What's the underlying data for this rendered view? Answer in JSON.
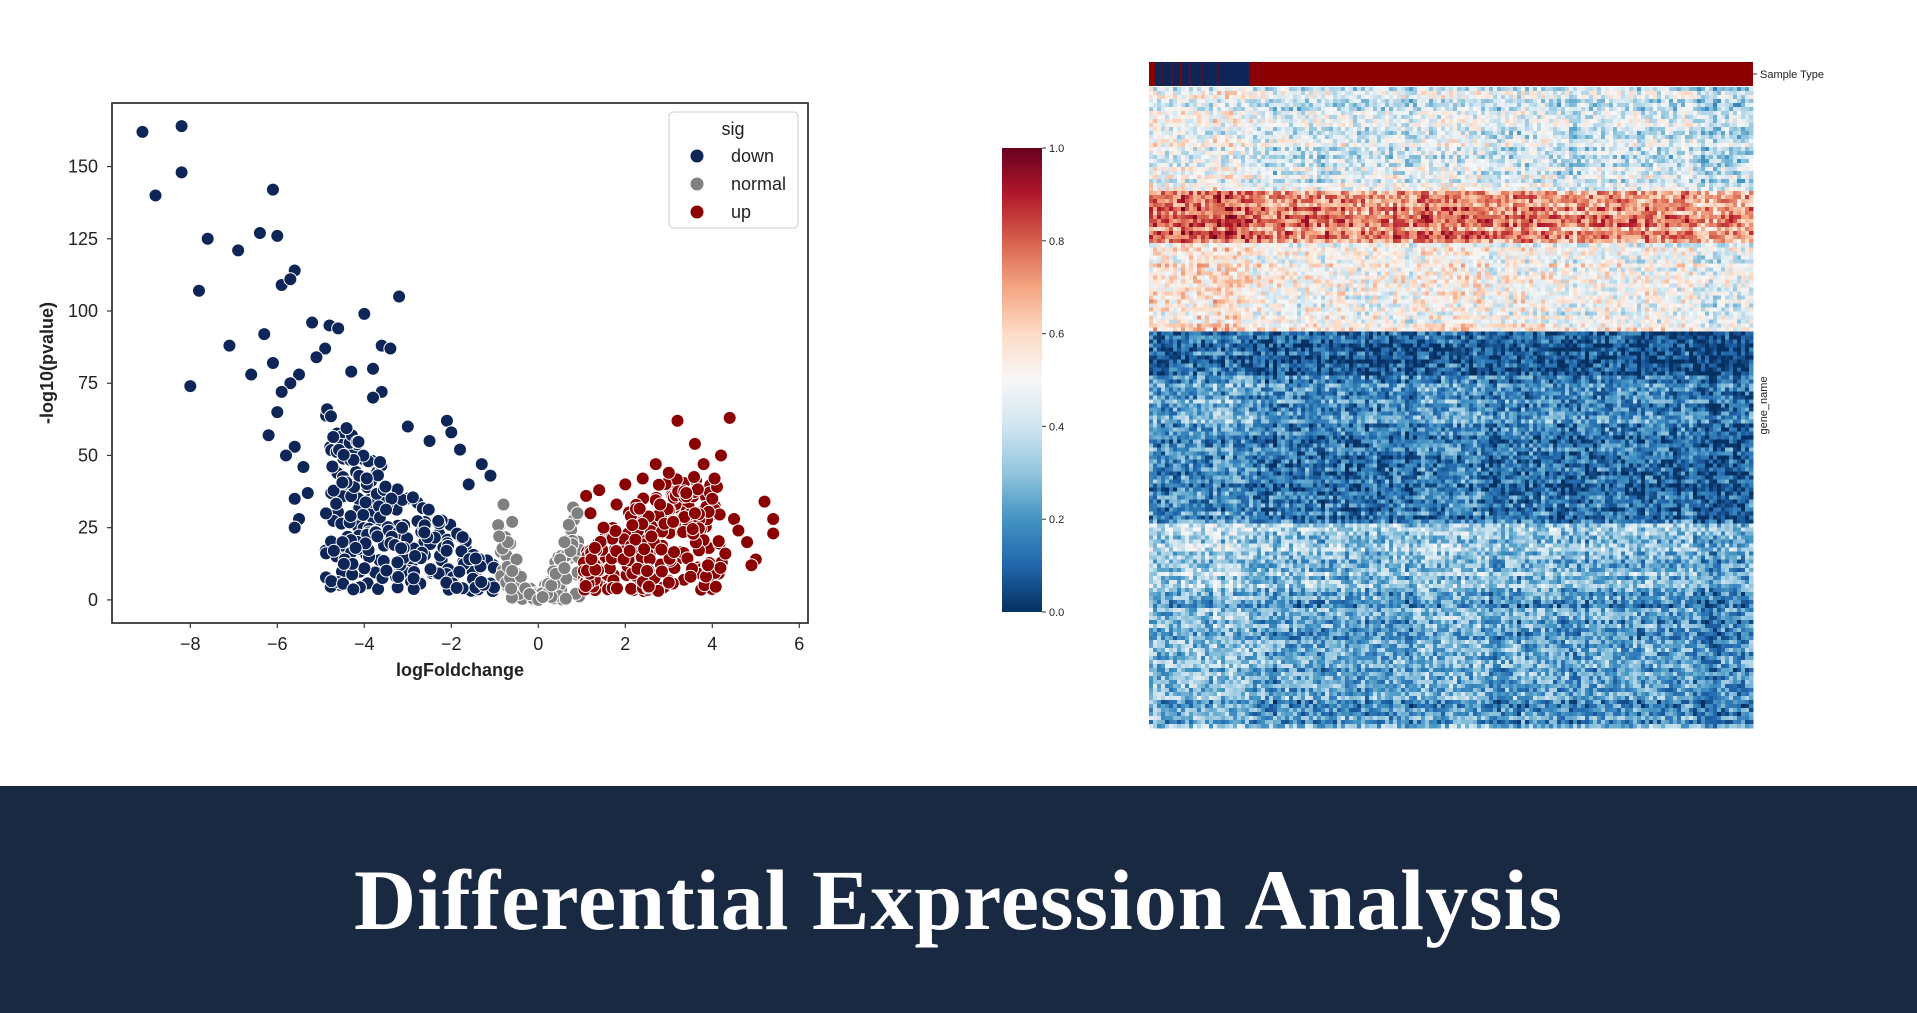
{
  "banner": {
    "title": "Differential Expression Analysis"
  },
  "chart_data": [
    {
      "type": "scatter",
      "title": "",
      "xlabel": "logFoldchange",
      "ylabel": "-log10(pvalue)",
      "xlim": [
        -9.8,
        6.2
      ],
      "ylim": [
        -8,
        172
      ],
      "xticks": [
        -8,
        -6,
        -4,
        -2,
        0,
        2,
        4,
        6
      ],
      "yticks": [
        0,
        25,
        50,
        75,
        100,
        125,
        150
      ],
      "grid": false,
      "legend": {
        "title": "sig",
        "position": "top-right",
        "entries": [
          {
            "label": "down",
            "color": "#0d2557"
          },
          {
            "label": "normal",
            "color": "#808080"
          },
          {
            "label": "up",
            "color": "#8b0000"
          }
        ]
      },
      "series": [
        {
          "name": "down",
          "color": "#0d2557",
          "points": [
            [
              -9.1,
              162
            ],
            [
              -8.2,
              164
            ],
            [
              -8.8,
              140
            ],
            [
              -8.2,
              148
            ],
            [
              -6.1,
              142
            ],
            [
              -7.6,
              125
            ],
            [
              -6.9,
              121
            ],
            [
              -6.4,
              127
            ],
            [
              -6.0,
              126
            ],
            [
              -5.6,
              114
            ],
            [
              -5.9,
              109
            ],
            [
              -5.7,
              111
            ],
            [
              -3.2,
              105
            ],
            [
              -7.8,
              107
            ],
            [
              -6.3,
              92
            ],
            [
              -7.1,
              88
            ],
            [
              -6.6,
              78
            ],
            [
              -8.0,
              74
            ],
            [
              -4.0,
              99
            ],
            [
              -5.2,
              96
            ],
            [
              -4.8,
              95
            ],
            [
              -4.6,
              94
            ],
            [
              -3.6,
              88
            ],
            [
              -3.4,
              87
            ],
            [
              -3.8,
              80
            ],
            [
              -4.3,
              79
            ],
            [
              -4.9,
              87
            ],
            [
              -5.1,
              84
            ],
            [
              -6.1,
              82
            ],
            [
              -5.5,
              78
            ],
            [
              -5.7,
              75
            ],
            [
              -5.9,
              72
            ],
            [
              -6.0,
              65
            ],
            [
              -6.2,
              57
            ],
            [
              -5.6,
              53
            ],
            [
              -5.8,
              50
            ],
            [
              -5.4,
              46
            ],
            [
              -5.3,
              37
            ],
            [
              -5.6,
              35
            ],
            [
              -5.5,
              28
            ],
            [
              -5.6,
              25
            ],
            [
              -4.5,
              20
            ],
            [
              -4.7,
              17
            ],
            [
              -4.2,
              18
            ],
            [
              -3.7,
              22
            ],
            [
              -3.0,
              60
            ],
            [
              -2.1,
              62
            ],
            [
              -2.0,
              58
            ],
            [
              -1.3,
              47
            ],
            [
              -1.1,
              43
            ],
            [
              -1.6,
              40
            ],
            [
              -3.6,
              72
            ],
            [
              -3.8,
              70
            ],
            [
              -2.5,
              55
            ],
            [
              -1.8,
              52
            ]
          ]
        },
        {
          "name": "normal",
          "color": "#808080",
          "points": [
            [
              -0.8,
              33
            ],
            [
              -0.6,
              27
            ],
            [
              -0.7,
              20
            ],
            [
              -0.5,
              14
            ],
            [
              -0.4,
              8
            ],
            [
              -0.3,
              4
            ],
            [
              -0.2,
              2
            ],
            [
              0.0,
              0
            ],
            [
              0.2,
              2
            ],
            [
              0.3,
              5
            ],
            [
              0.4,
              9
            ],
            [
              0.5,
              14
            ],
            [
              0.6,
              20
            ],
            [
              0.7,
              26
            ],
            [
              0.8,
              32
            ],
            [
              0.9,
              30
            ],
            [
              -0.9,
              22
            ],
            [
              -0.6,
              10
            ],
            [
              0.6,
              11
            ],
            [
              0.1,
              1
            ]
          ]
        },
        {
          "name": "up",
          "color": "#8b0000",
          "points": [
            [
              1.1,
              36
            ],
            [
              1.4,
              38
            ],
            [
              1.2,
              30
            ],
            [
              1.5,
              25
            ],
            [
              1.3,
              18
            ],
            [
              1.8,
              33
            ],
            [
              2.0,
              40
            ],
            [
              2.4,
              42
            ],
            [
              2.7,
              47
            ],
            [
              3.0,
              44
            ],
            [
              3.2,
              62
            ],
            [
              3.6,
              54
            ],
            [
              4.4,
              63
            ],
            [
              4.2,
              50
            ],
            [
              3.8,
              47
            ],
            [
              3.4,
              37
            ],
            [
              4.0,
              35
            ],
            [
              4.5,
              28
            ],
            [
              4.8,
              20
            ],
            [
              5.0,
              14
            ],
            [
              5.4,
              28
            ],
            [
              5.2,
              34
            ],
            [
              5.4,
              23
            ],
            [
              4.9,
              12
            ],
            [
              4.6,
              24
            ],
            [
              4.3,
              16
            ],
            [
              3.9,
              12
            ],
            [
              3.5,
              8
            ],
            [
              3.0,
              6
            ],
            [
              2.5,
              10
            ],
            [
              2.1,
              17
            ],
            [
              2.6,
              22
            ],
            [
              3.1,
              27
            ],
            [
              3.6,
              30
            ],
            [
              2.8,
              33
            ]
          ]
        }
      ]
    },
    {
      "type": "heatmap",
      "title": "",
      "xlabel": "",
      "ylabel": "gene_name",
      "column_annotation_label": "Sample Type",
      "colorbar": {
        "min": 0.0,
        "max": 1.0,
        "ticks": [
          "0.0",
          "0.2",
          "0.4",
          "0.6",
          "0.8",
          "1.0"
        ],
        "colors": [
          "#053061",
          "#2166ac",
          "#4393c3",
          "#92c5de",
          "#d1e5f0",
          "#f7f7f7",
          "#fddbc7",
          "#f4a582",
          "#d6604d",
          "#b2182b",
          "#67001f"
        ]
      },
      "sample_type_colors": [
        "#0d2557",
        "#8b0000"
      ]
    }
  ]
}
